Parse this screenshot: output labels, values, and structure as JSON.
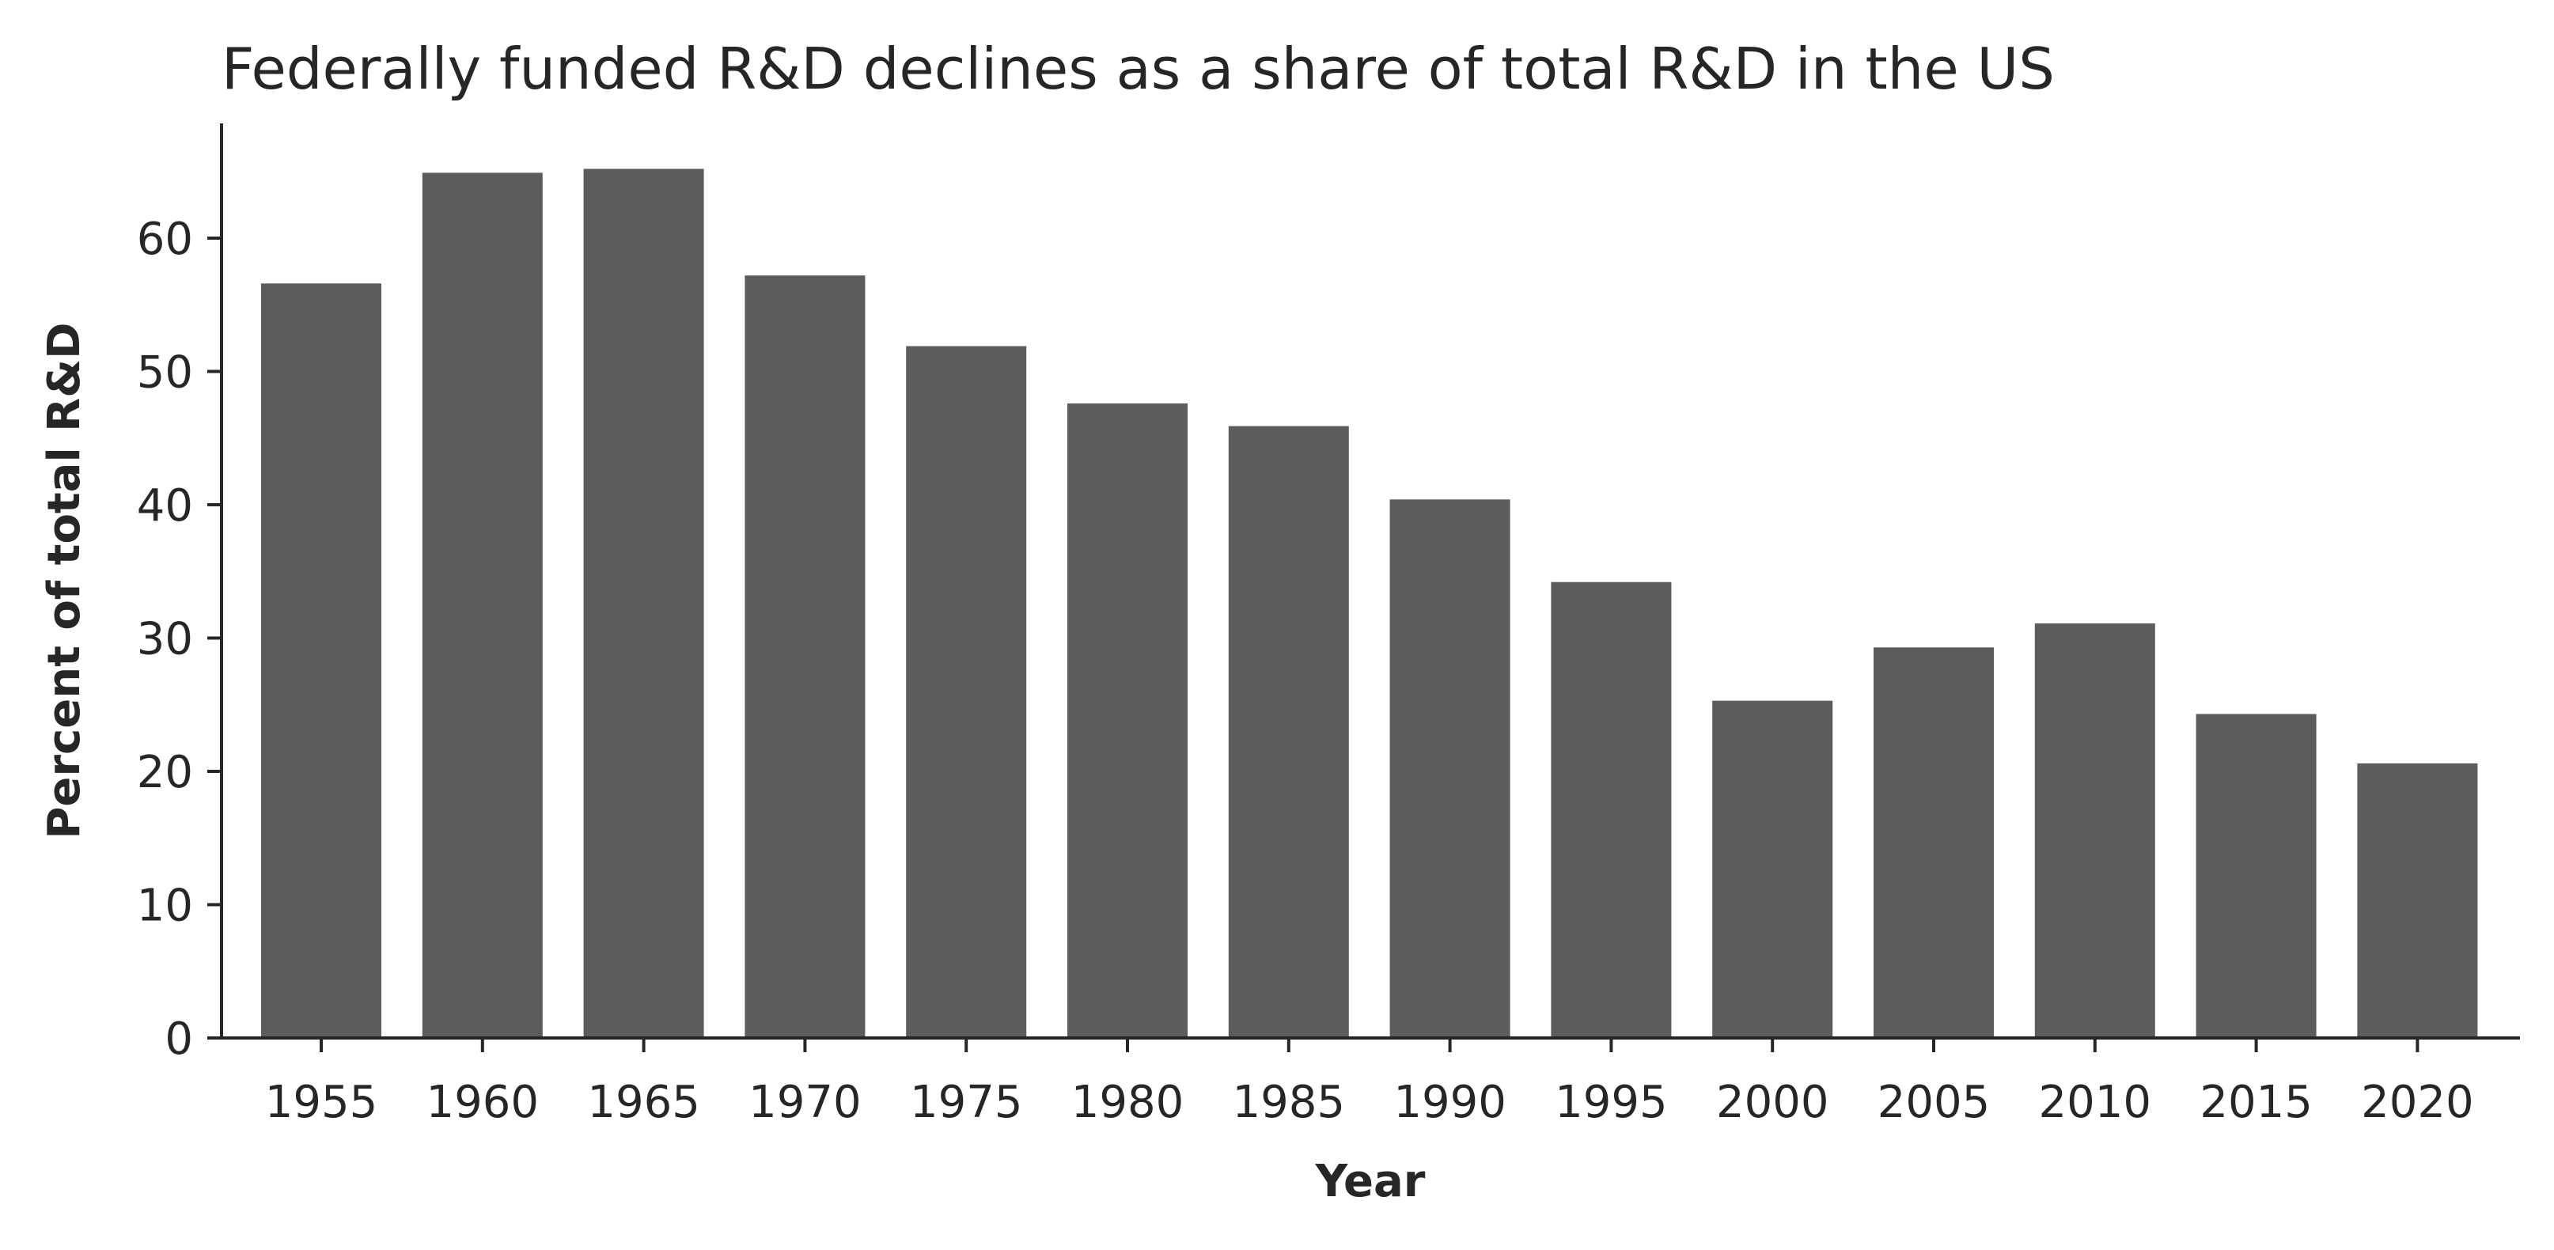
{
  "chart_data": {
    "type": "bar",
    "title": "Federally funded R&D declines as a share of total R&D in the US",
    "xlabel": "Year",
    "ylabel": "Percent of total R&D",
    "categories": [
      "1955",
      "1960",
      "1965",
      "1970",
      "1975",
      "1980",
      "1985",
      "1990",
      "1995",
      "2000",
      "2005",
      "2010",
      "2015",
      "2020"
    ],
    "values": [
      56.6,
      64.9,
      65.2,
      57.2,
      51.9,
      47.6,
      45.9,
      40.4,
      34.2,
      25.3,
      29.3,
      31.1,
      24.3,
      20.6
    ],
    "ylim": [
      0,
      68.5
    ],
    "yticks": [
      0,
      10,
      20,
      30,
      40,
      50,
      60
    ],
    "bar_color": "#5c5c5c",
    "axis_color": "#262626",
    "grid": false,
    "legend": "none"
  }
}
